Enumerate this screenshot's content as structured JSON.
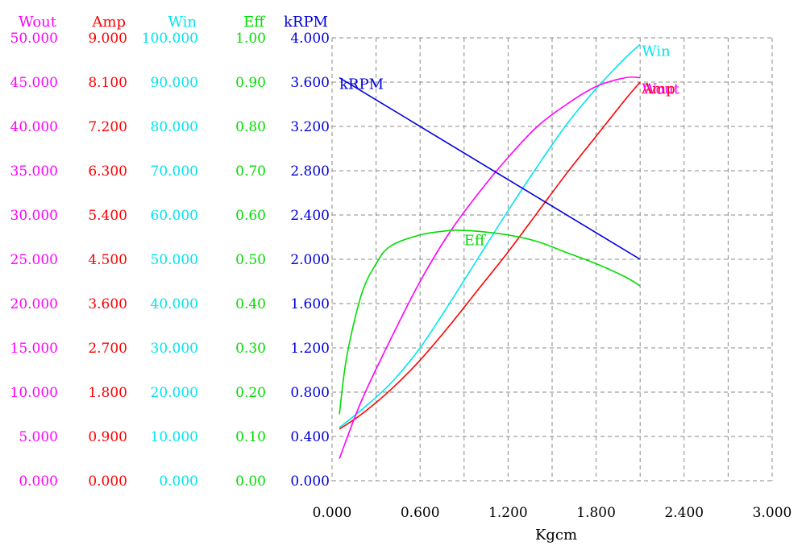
{
  "chart_data": {
    "type": "line",
    "x_axis": {
      "label": "Kgcm",
      "range": [
        0,
        3
      ],
      "tick_labels": [
        "0.000",
        "0.600",
        "1.200",
        "1.800",
        "2.400",
        "3.000"
      ]
    },
    "axes": [
      {
        "id": "wout",
        "header": "Wout",
        "color": "#ff00ff",
        "range": [
          0,
          50
        ],
        "tick_labels": [
          "0.000",
          "5.000",
          "10.000",
          "15.000",
          "20.000",
          "25.000",
          "30.000",
          "35.000",
          "40.000",
          "45.000",
          "50.000"
        ]
      },
      {
        "id": "amp",
        "header": "Amp",
        "color": "#ff0000",
        "range": [
          0,
          9
        ],
        "tick_labels": [
          "0.000",
          "0.900",
          "1.800",
          "2.700",
          "3.600",
          "4.500",
          "5.400",
          "6.300",
          "7.200",
          "8.100",
          "9.000"
        ]
      },
      {
        "id": "win",
        "header": "Win",
        "color": "#00e5ee",
        "range": [
          0,
          100
        ],
        "tick_labels": [
          "0.000",
          "10.000",
          "20.000",
          "30.000",
          "40.000",
          "50.000",
          "60.000",
          "70.000",
          "80.000",
          "90.000",
          "100.000"
        ]
      },
      {
        "id": "eff",
        "header": "Eff",
        "color": "#00dd00",
        "range": [
          0,
          1
        ],
        "tick_labels": [
          "0.00",
          "0.10",
          "0.20",
          "0.30",
          "0.40",
          "0.50",
          "0.60",
          "0.70",
          "0.80",
          "0.90",
          "1.00"
        ]
      },
      {
        "id": "krpm",
        "header": "kRPM",
        "color": "#0000dd",
        "range": [
          0,
          4
        ],
        "tick_labels": [
          "0.000",
          "0.400",
          "0.800",
          "1.200",
          "1.600",
          "2.000",
          "2.400",
          "2.800",
          "3.200",
          "3.600",
          "4.000"
        ]
      }
    ],
    "grid": true,
    "series": [
      {
        "name": "Win",
        "axis": "win",
        "color": "#00e5ee",
        "x": [
          0.05,
          0.2,
          0.4,
          0.6,
          0.8,
          1.0,
          1.2,
          1.4,
          1.6,
          1.8,
          2.0,
          2.1
        ],
        "y": [
          12.0,
          16.0,
          22.0,
          30.0,
          40.0,
          50.5,
          61.0,
          71.0,
          80.5,
          88.5,
          95.5,
          98.5
        ]
      },
      {
        "name": "Amp",
        "axis": "amp",
        "color": "#ff0000",
        "x": [
          0.05,
          0.2,
          0.4,
          0.6,
          0.8,
          1.0,
          1.2,
          1.4,
          1.6,
          1.8,
          2.0,
          2.1
        ],
        "y": [
          1.05,
          1.35,
          1.85,
          2.45,
          3.15,
          3.9,
          4.65,
          5.45,
          6.25,
          7.0,
          7.75,
          8.1
        ]
      },
      {
        "name": "Wout",
        "axis": "wout",
        "color": "#ff00ff",
        "x": [
          0.05,
          0.2,
          0.4,
          0.6,
          0.8,
          1.0,
          1.2,
          1.4,
          1.6,
          1.8,
          2.0,
          2.1
        ],
        "y": [
          2.5,
          9.0,
          16.0,
          22.5,
          28.0,
          32.5,
          36.5,
          40.0,
          42.5,
          44.5,
          45.5,
          45.5
        ]
      },
      {
        "name": "Eff",
        "axis": "eff",
        "color": "#00dd00",
        "x": [
          0.05,
          0.1,
          0.2,
          0.3,
          0.4,
          0.6,
          0.8,
          0.9,
          1.0,
          1.2,
          1.4,
          1.6,
          1.8,
          2.0,
          2.1
        ],
        "y": [
          0.15,
          0.28,
          0.42,
          0.49,
          0.53,
          0.555,
          0.565,
          0.565,
          0.563,
          0.555,
          0.54,
          0.515,
          0.49,
          0.46,
          0.44
        ]
      },
      {
        "name": "kRPM",
        "axis": "krpm",
        "color": "#0000dd",
        "x": [
          0.05,
          2.1
        ],
        "y": [
          3.64,
          2.0
        ]
      }
    ]
  }
}
